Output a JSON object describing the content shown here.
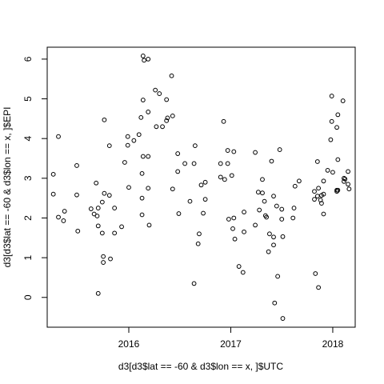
{
  "chart_data": {
    "type": "scatter",
    "title": "",
    "xlabel": "d3[d3$lat == -60 & d3$lon == x, ]$UTC",
    "ylabel": "d3[d3$lat == -60 & d3$lon == x, ]$EPI",
    "xlim": [
      2015.2,
      2018.22
    ],
    "ylim": [
      -0.75,
      6.3
    ],
    "x_ticks": [
      2016,
      2017,
      2018
    ],
    "x_tick_labels": [
      "2016",
      "2017",
      "2018"
    ],
    "y_ticks": [
      0,
      1,
      2,
      3,
      4,
      5,
      6
    ],
    "y_tick_labels": [
      "0",
      "1",
      "2",
      "3",
      "4",
      "5",
      "6"
    ],
    "grid": false,
    "marker_color": "#000000",
    "points": [
      [
        2015.26,
        3.1
      ],
      [
        2015.26,
        2.6
      ],
      [
        2015.31,
        4.05
      ],
      [
        2015.31,
        2.02
      ],
      [
        2015.36,
        1.93
      ],
      [
        2015.37,
        2.17
      ],
      [
        2015.49,
        3.32
      ],
      [
        2015.49,
        2.58
      ],
      [
        2015.5,
        1.67
      ],
      [
        2015.63,
        2.23
      ],
      [
        2015.66,
        2.1
      ],
      [
        2015.68,
        2.88
      ],
      [
        2015.69,
        2.05
      ],
      [
        2015.7,
        2.25
      ],
      [
        2015.7,
        1.8
      ],
      [
        2015.7,
        0.1
      ],
      [
        2015.74,
        2.4
      ],
      [
        2015.74,
        1.62
      ],
      [
        2015.75,
        0.88
      ],
      [
        2015.75,
        1.03
      ],
      [
        2015.76,
        4.47
      ],
      [
        2015.76,
        2.62
      ],
      [
        2015.81,
        3.82
      ],
      [
        2015.81,
        2.57
      ],
      [
        2015.82,
        0.97
      ],
      [
        2015.86,
        2.25
      ],
      [
        2015.86,
        1.62
      ],
      [
        2015.93,
        1.78
      ],
      [
        2015.96,
        3.4
      ],
      [
        2015.99,
        4.05
      ],
      [
        2015.99,
        3.83
      ],
      [
        2016.0,
        2.77
      ],
      [
        2016.05,
        3.95
      ],
      [
        2016.1,
        4.1
      ],
      [
        2016.12,
        4.53
      ],
      [
        2016.13,
        3.12
      ],
      [
        2016.13,
        2.5
      ],
      [
        2016.13,
        2.08
      ],
      [
        2016.14,
        4.97
      ],
      [
        2016.14,
        3.55
      ],
      [
        2016.14,
        6.08
      ],
      [
        2016.15,
        5.97
      ],
      [
        2016.19,
        6.0
      ],
      [
        2016.19,
        4.67
      ],
      [
        2016.19,
        3.55
      ],
      [
        2016.19,
        2.75
      ],
      [
        2016.2,
        1.82
      ],
      [
        2016.26,
        5.22
      ],
      [
        2016.27,
        4.3
      ],
      [
        2016.3,
        5.13
      ],
      [
        2016.33,
        4.3
      ],
      [
        2016.37,
        4.45
      ],
      [
        2016.37,
        4.98
      ],
      [
        2016.38,
        4.52
      ],
      [
        2016.42,
        5.58
      ],
      [
        2016.43,
        4.57
      ],
      [
        2016.43,
        2.73
      ],
      [
        2016.48,
        3.62
      ],
      [
        2016.48,
        3.17
      ],
      [
        2016.49,
        2.11
      ],
      [
        2016.55,
        3.37
      ],
      [
        2016.6,
        2.42
      ],
      [
        2016.64,
        3.37
      ],
      [
        2016.64,
        0.35
      ],
      [
        2016.65,
        3.82
      ],
      [
        2016.68,
        1.35
      ],
      [
        2016.69,
        1.6
      ],
      [
        2016.71,
        2.83
      ],
      [
        2016.73,
        2.12
      ],
      [
        2016.75,
        2.47
      ],
      [
        2016.75,
        2.9
      ],
      [
        2016.9,
        3.37
      ],
      [
        2016.9,
        3.03
      ],
      [
        2016.93,
        4.43
      ],
      [
        2016.94,
        2.97
      ],
      [
        2016.97,
        3.7
      ],
      [
        2016.97,
        3.37
      ],
      [
        2016.98,
        1.97
      ],
      [
        2017.01,
        3.07
      ],
      [
        2017.02,
        1.73
      ],
      [
        2017.03,
        3.67
      ],
      [
        2017.03,
        2.0
      ],
      [
        2017.04,
        1.47
      ],
      [
        2017.08,
        0.78
      ],
      [
        2017.12,
        0.63
      ],
      [
        2017.13,
        2.15
      ],
      [
        2017.13,
        1.65
      ],
      [
        2017.24,
        3.65
      ],
      [
        2017.24,
        1.82
      ],
      [
        2017.27,
        2.65
      ],
      [
        2017.28,
        2.2
      ],
      [
        2017.31,
        2.97
      ],
      [
        2017.31,
        2.63
      ],
      [
        2017.33,
        2.42
      ],
      [
        2017.34,
        2.06
      ],
      [
        2017.35,
        2.02
      ],
      [
        2017.37,
        1.15
      ],
      [
        2017.38,
        1.6
      ],
      [
        2017.4,
        3.43
      ],
      [
        2017.42,
        2.55
      ],
      [
        2017.42,
        1.52
      ],
      [
        2017.42,
        1.32
      ],
      [
        2017.43,
        -0.14
      ],
      [
        2017.45,
        2.3
      ],
      [
        2017.46,
        0.53
      ],
      [
        2017.48,
        3.72
      ],
      [
        2017.5,
        2.22
      ],
      [
        2017.5,
        1.97
      ],
      [
        2017.51,
        1.53
      ],
      [
        2017.51,
        -0.53
      ],
      [
        2017.61,
        2.0
      ],
      [
        2017.62,
        2.25
      ],
      [
        2017.63,
        2.8
      ],
      [
        2017.67,
        2.93
      ],
      [
        2017.82,
        2.67
      ],
      [
        2017.82,
        2.47
      ],
      [
        2017.83,
        0.6
      ],
      [
        2017.85,
        2.55
      ],
      [
        2017.85,
        3.42
      ],
      [
        2017.86,
        2.75
      ],
      [
        2017.86,
        0.25
      ],
      [
        2017.88,
        2.45
      ],
      [
        2017.89,
        2.57
      ],
      [
        2017.89,
        2.37
      ],
      [
        2017.91,
        2.1
      ],
      [
        2017.91,
        2.6
      ],
      [
        2017.91,
        2.93
      ],
      [
        2017.95,
        3.2
      ],
      [
        2017.98,
        3.97
      ],
      [
        2017.99,
        4.43
      ],
      [
        2017.99,
        5.07
      ],
      [
        2018.0,
        3.15
      ],
      [
        2018.04,
        2.7
      ],
      [
        2018.04,
        2.67
      ],
      [
        2018.04,
        4.28
      ],
      [
        2018.05,
        3.47
      ],
      [
        2018.05,
        4.6
      ],
      [
        2018.05,
        2.7
      ],
      [
        2018.1,
        4.95
      ],
      [
        2018.11,
        2.92
      ],
      [
        2018.11,
        3.0
      ],
      [
        2018.12,
        2.98
      ],
      [
        2018.15,
        3.17
      ],
      [
        2018.15,
        2.85
      ],
      [
        2018.16,
        2.73
      ]
    ]
  }
}
